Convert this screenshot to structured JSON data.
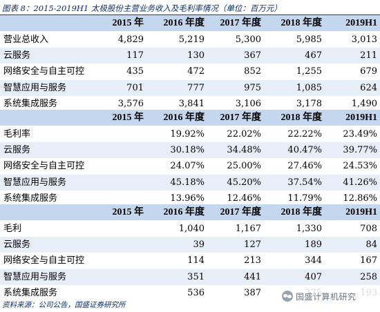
{
  "caption": "图表 8：2015-2019H1 太极股份主营业务收入及毛利率情况（单位：百万元）",
  "tables": [
    {
      "headers": [
        "",
        "2015 年",
        "2016 年度",
        "2017 年度",
        "2018 年度",
        "2019H1"
      ],
      "rows": [
        {
          "label": "营业总收入",
          "values": [
            "4,829",
            "5,219",
            "5,300",
            "5,985",
            "3,013"
          ]
        },
        {
          "label": "云服务",
          "values": [
            "117",
            "130",
            "367",
            "467",
            "211"
          ]
        },
        {
          "label": "网络安全与自主可控",
          "values": [
            "435",
            "472",
            "852",
            "1,255",
            "679"
          ]
        },
        {
          "label": "智慧应用与服务",
          "values": [
            "701",
            "777",
            "975",
            "1,085",
            "624"
          ]
        },
        {
          "label": "系统集成服务",
          "values": [
            "3,576",
            "3,841",
            "3,106",
            "3,178",
            "1,490"
          ]
        }
      ]
    },
    {
      "headers": [
        "",
        "2015 年",
        "2016 年度",
        "2017 年度",
        "2018 年度",
        "2019H1"
      ],
      "rows": [
        {
          "label": "毛利率",
          "values": [
            "",
            "19.92%",
            "22.02%",
            "22.22%",
            "23.49%"
          ]
        },
        {
          "label": "云服务",
          "values": [
            "",
            "30.18%",
            "34.48%",
            "40.47%",
            "39.77%"
          ]
        },
        {
          "label": "网络安全与自主可控",
          "values": [
            "",
            "24.07%",
            "25.00%",
            "27.46%",
            "24.53%"
          ]
        },
        {
          "label": "智慧应用与服务",
          "values": [
            "",
            "45.18%",
            "45.20%",
            "37.54%",
            "41.26%"
          ]
        },
        {
          "label": "系统集成服务",
          "values": [
            "",
            "13.96%",
            "12.46%",
            "11.79%",
            "12.86%"
          ]
        }
      ]
    },
    {
      "headers": [
        "",
        "2015 年",
        "2016 年度",
        "2017 年度",
        "2018 年度",
        "2019H1"
      ],
      "rows": [
        {
          "label": "毛利",
          "values": [
            "",
            "1,040",
            "1,167",
            "1,330",
            "708"
          ]
        },
        {
          "label": "云服务",
          "values": [
            "",
            "39",
            "127",
            "189",
            "84"
          ]
        },
        {
          "label": "网络安全与自主可控",
          "values": [
            "",
            "114",
            "213",
            "344",
            "167"
          ]
        },
        {
          "label": "智慧应用与服务",
          "values": [
            "",
            "351",
            "441",
            "407",
            "258"
          ]
        },
        {
          "label": "系统集成服务",
          "values": [
            "",
            "536",
            "387",
            "375",
            "193"
          ]
        }
      ]
    }
  ],
  "source": "资料来源：公司公告，国盛证券研究所",
  "watermark": {
    "icon": "wechat-icon",
    "text": "国盛计算机研究"
  }
}
